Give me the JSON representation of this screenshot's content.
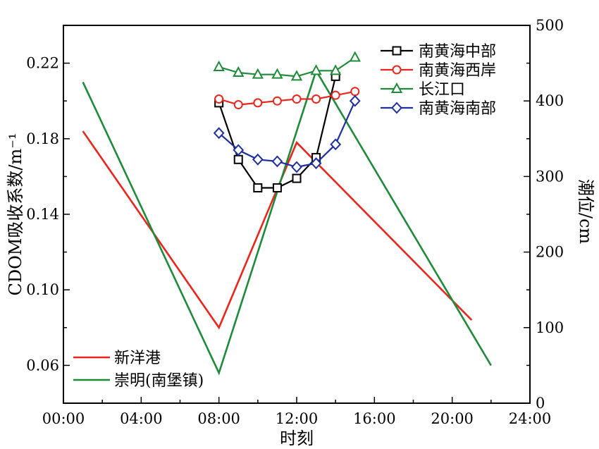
{
  "chart_data": {
    "type": "line",
    "xlabel": "时刻",
    "ylabel_left": "CDOM吸收系数/m⁻¹",
    "ylabel_right": "潮位/cm",
    "x_ticks": [
      "00:00",
      "04:00",
      "08:00",
      "12:00",
      "16:00",
      "20:00",
      "24:00"
    ],
    "xlim_hours": [
      0,
      24
    ],
    "ylim_left": [
      0.04,
      0.24
    ],
    "y_ticks_left": [
      "0.06",
      "0.10",
      "0.14",
      "0.18",
      "0.22"
    ],
    "ylim_right": [
      0,
      500
    ],
    "y_ticks_right": [
      "0",
      "100",
      "200",
      "300",
      "400",
      "500"
    ],
    "grid": false,
    "legend_cdom_position": "top-right",
    "legend_tide_position": "bottom-left",
    "cdom_series": [
      {
        "name": "南黄海中部",
        "color": "#000000",
        "marker": "square",
        "points": [
          [
            "08:00",
            0.199
          ],
          [
            "09:00",
            0.169
          ],
          [
            "10:00",
            0.154
          ],
          [
            "11:00",
            0.154
          ],
          [
            "12:00",
            0.159
          ],
          [
            "13:00",
            0.17
          ],
          [
            "14:00",
            0.213
          ]
        ]
      },
      {
        "name": "南黄海西岸",
        "color": "#e8261d",
        "marker": "circle",
        "points": [
          [
            "08:00",
            0.201
          ],
          [
            "09:00",
            0.198
          ],
          [
            "10:00",
            0.199
          ],
          [
            "11:00",
            0.2
          ],
          [
            "12:00",
            0.201
          ],
          [
            "13:00",
            0.201
          ],
          [
            "14:00",
            0.203
          ],
          [
            "15:00",
            0.205
          ]
        ]
      },
      {
        "name": "长江口",
        "color": "#1e8a3a",
        "marker": "triangle",
        "points": [
          [
            "08:00",
            0.218
          ],
          [
            "09:00",
            0.215
          ],
          [
            "10:00",
            0.214
          ],
          [
            "11:00",
            0.214
          ],
          [
            "12:00",
            0.213
          ],
          [
            "13:00",
            0.216
          ],
          [
            "14:00",
            0.216
          ],
          [
            "15:00",
            0.223
          ]
        ]
      },
      {
        "name": "南黄海南部",
        "color": "#1f2fa0",
        "marker": "diamond",
        "points": [
          [
            "08:00",
            0.183
          ],
          [
            "09:00",
            0.174
          ],
          [
            "10:00",
            0.169
          ],
          [
            "11:00",
            0.168
          ],
          [
            "12:00",
            0.165
          ],
          [
            "13:00",
            0.167
          ],
          [
            "14:00",
            0.177
          ],
          [
            "15:00",
            0.2
          ]
        ]
      }
    ],
    "tide_series": [
      {
        "name": "新洋港",
        "color": "#e8261d",
        "points": [
          [
            "01:00",
            360
          ],
          [
            "08:00",
            100
          ],
          [
            "12:00",
            345
          ],
          [
            "21:00",
            110
          ]
        ]
      },
      {
        "name": "崇明(南堡镇)",
        "color": "#1e8a3a",
        "points": [
          [
            "01:00",
            425
          ],
          [
            "08:00",
            40
          ],
          [
            "13:00",
            440
          ],
          [
            "22:00",
            50
          ]
        ]
      }
    ]
  }
}
